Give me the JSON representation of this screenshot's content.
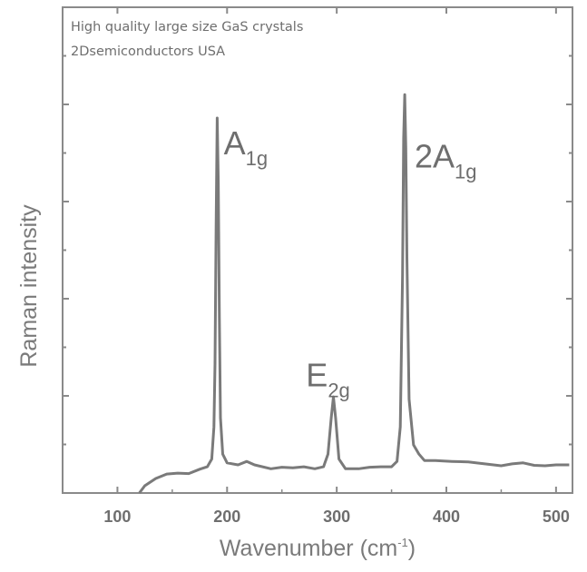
{
  "chart_data": {
    "type": "line",
    "title": "",
    "xlabel": "Wavenumber (cm",
    "xlabel_sup": "-1",
    "xlabel_close": ")",
    "ylabel": "Raman intensity",
    "xlim": [
      50,
      515
    ],
    "ylim": [
      0,
      100
    ],
    "xticks": [
      100,
      200,
      300,
      400,
      500
    ],
    "xtick_labels": [
      "100",
      "200",
      "300",
      "400",
      "500"
    ],
    "yticks_unlabeled": [
      10,
      20,
      30,
      40,
      50,
      60,
      70,
      80,
      90
    ],
    "grid": false,
    "line_color": "#7a7a7a",
    "series": [
      {
        "points": [
          [
            120,
            0
          ],
          [
            125,
            1.5
          ],
          [
            135,
            3.0
          ],
          [
            145,
            3.9
          ],
          [
            155,
            4.1
          ],
          [
            165,
            4.0
          ],
          [
            175,
            4.9
          ],
          [
            182,
            5.4
          ],
          [
            186,
            7
          ],
          [
            188,
            13.6
          ],
          [
            189,
            26.7
          ],
          [
            190,
            54.8
          ],
          [
            191,
            77.2
          ],
          [
            192,
            64
          ],
          [
            193,
            36
          ],
          [
            194,
            15.5
          ],
          [
            196,
            8
          ],
          [
            200,
            6.2
          ],
          [
            210,
            5.8
          ],
          [
            218,
            6.5
          ],
          [
            225,
            5.8
          ],
          [
            240,
            5.0
          ],
          [
            250,
            5.3
          ],
          [
            260,
            5.2
          ],
          [
            270,
            5.4
          ],
          [
            280,
            5.0
          ],
          [
            288,
            5.4
          ],
          [
            292,
            8
          ],
          [
            295,
            15.5
          ],
          [
            297,
            19.8
          ],
          [
            299,
            15.5
          ],
          [
            302,
            7
          ],
          [
            308,
            5.0
          ],
          [
            320,
            5.0
          ],
          [
            330,
            5.3
          ],
          [
            340,
            5.4
          ],
          [
            350,
            5.4
          ],
          [
            355,
            6.5
          ],
          [
            358,
            13.6
          ],
          [
            360,
            45
          ],
          [
            361,
            73
          ],
          [
            362,
            82
          ],
          [
            363,
            71
          ],
          [
            364,
            48.6
          ],
          [
            366,
            19.3
          ],
          [
            370,
            9.9
          ],
          [
            375,
            8
          ],
          [
            380,
            6.7
          ],
          [
            390,
            6.7
          ],
          [
            405,
            6.5
          ],
          [
            420,
            6.4
          ],
          [
            435,
            6.0
          ],
          [
            450,
            5.6
          ],
          [
            460,
            6.0
          ],
          [
            470,
            6.2
          ],
          [
            480,
            5.7
          ],
          [
            490,
            5.6
          ],
          [
            500,
            5.8
          ],
          [
            512,
            5.8
          ]
        ]
      }
    ],
    "annotations": [
      {
        "text": "A",
        "sub": "1g",
        "x": 197,
        "y": 69.7
      },
      {
        "text": "E",
        "sub": "2g",
        "x": 272,
        "y": 22
      },
      {
        "text": "2A",
        "sub": "1g",
        "x": 371,
        "y": 67
      }
    ]
  },
  "watermark": {
    "line1": "High quality large size GaS crystals",
    "line2": "2Dsemiconductors USA"
  }
}
